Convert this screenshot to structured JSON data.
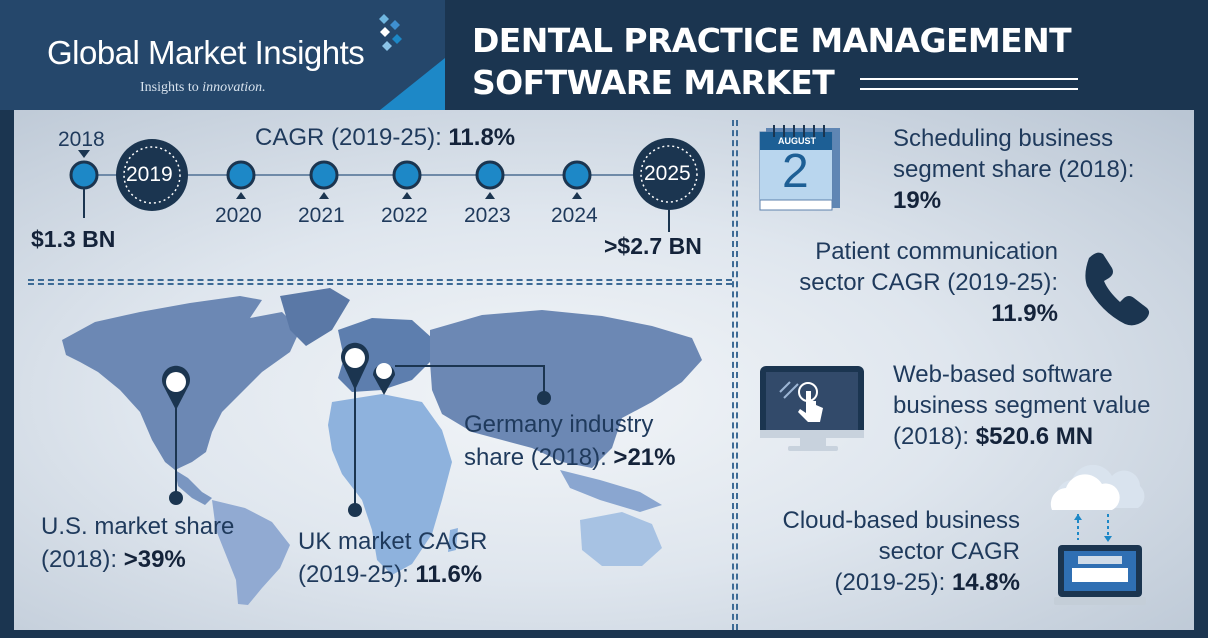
{
  "brand": {
    "name": "Global Market Insights",
    "tagline_prefix": "Insights to ",
    "tagline_em": "innovation."
  },
  "title": {
    "line1": "DENTAL PRACTICE MANAGEMENT",
    "line2": "SOFTWARE MARKET"
  },
  "timeline": {
    "cagr_label": "CAGR (2019-25): ",
    "cagr_value": "11.8%",
    "start_year": "2018",
    "start_value": "$1.3 BN",
    "big_years": [
      "2019",
      "2025"
    ],
    "years": [
      "2020",
      "2021",
      "2022",
      "2023",
      "2024"
    ],
    "end_value": ">$2.7 BN"
  },
  "map_stats": {
    "germany_line1": "Germany industry",
    "germany_line2_prefix": "share (2018): ",
    "germany_value": ">21%",
    "us_line1": "U.S. market share",
    "us_line2_prefix": "(2018): ",
    "us_value": ">39%",
    "uk_line1": "UK market CAGR",
    "uk_line2_prefix": "(2019-25): ",
    "uk_value": "11.6%"
  },
  "side_stats": {
    "calendar_month": "AUGUST",
    "calendar_day": "2",
    "scheduling_line1": "Scheduling business",
    "scheduling_line2": "segment share (2018):",
    "scheduling_value": "19%",
    "patient_line1": "Patient communication",
    "patient_line2": "sector CAGR (2019-25):",
    "patient_value": "11.9%",
    "web_line1": "Web-based software",
    "web_line2": "business segment value",
    "web_line3_prefix": "(2018): ",
    "web_value": "$520.6 MN",
    "cloud_line1": "Cloud-based business",
    "cloud_line2": "sector CAGR",
    "cloud_line3_prefix": "(2019-25): ",
    "cloud_value": "14.8%"
  },
  "icons": [
    "diamond-logo-icon",
    "calendar-icon",
    "phone-icon",
    "touch-monitor-icon",
    "cloud-computer-icon",
    "map-pin-icon"
  ],
  "colors": {
    "navy": "#1b3550",
    "accent_blue": "#1d88c7",
    "text": "#1f3a5c",
    "map": "#6c88b4"
  }
}
